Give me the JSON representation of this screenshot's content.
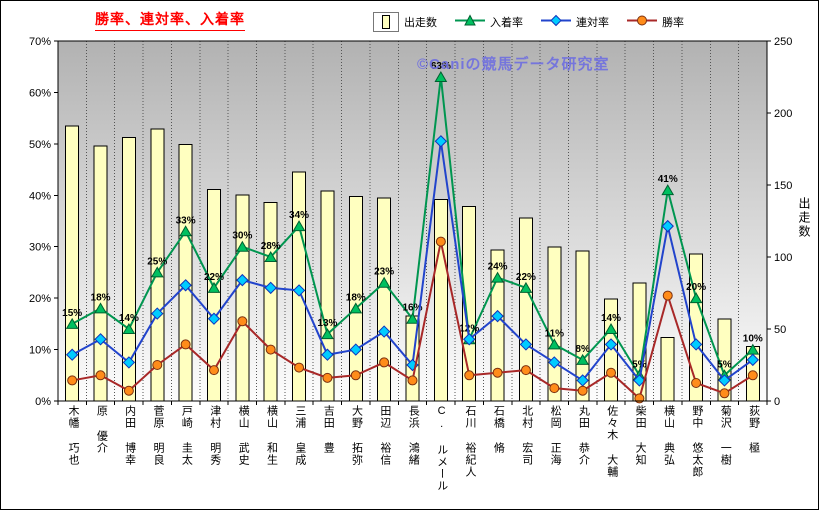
{
  "title": "勝率、連対率、入着率",
  "watermark": "©Caniの競馬データ研究室",
  "legend": [
    {
      "label": "出走数",
      "type": "bar",
      "color": "#FFFFC0"
    },
    {
      "label": "入着率",
      "type": "triangle",
      "line_color": "#009650",
      "marker_fill": "#00C060",
      "marker_stroke": "#006030"
    },
    {
      "label": "連対率",
      "type": "diamond",
      "line_color": "#2244CC",
      "marker_fill": "#00CCFF",
      "marker_stroke": "#1133BB"
    },
    {
      "label": "勝率",
      "type": "circle",
      "line_color": "#A82828",
      "marker_fill": "#FF8C1A",
      "marker_stroke": "#7A3010"
    }
  ],
  "chart_data": {
    "type": "combo-bar-line",
    "title": "勝率、連対率、入着率",
    "categories": [
      "木幡 巧也",
      "原 優介",
      "内田 博幸",
      "菅原 明良",
      "戸崎 圭太",
      "津村 明秀",
      "横山 武史",
      "横山 和生",
      "三浦 皇成",
      "吉田 豊",
      "大野 拓弥",
      "田辺 裕信",
      "長浜 鴻緒",
      "C. ルメール",
      "石川 裕紀人",
      "石橋 脩",
      "北村 宏司",
      "松岡 正海",
      "丸田 恭介",
      "佐々木 大輔",
      "柴田 大知",
      "横山 典弘",
      "野中 悠太郎",
      "菊沢 一樹",
      "荻野 極"
    ],
    "series": [
      {
        "name": "出走数",
        "key": "starts",
        "type": "bar",
        "axis": "right",
        "color": "#FFFFC0",
        "border": "#000000",
        "values": [
          191,
          177,
          183,
          189,
          178,
          147,
          143,
          138,
          159,
          146,
          142,
          141,
          59,
          140,
          135,
          105,
          127,
          107,
          104,
          71,
          82,
          44,
          102,
          57,
          38
        ]
      },
      {
        "name": "入着率",
        "key": "placing-rate",
        "type": "line",
        "marker": "triangle",
        "axis": "left",
        "color": "#009650",
        "marker_fill": "#00C060",
        "marker_stroke": "#006030",
        "show_labels": true,
        "label_format": "{v}%",
        "values": [
          15,
          18,
          14,
          25,
          33,
          22,
          30,
          28,
          34,
          13,
          18,
          23,
          16,
          63,
          12,
          24,
          22,
          11,
          8,
          14,
          5,
          41,
          20,
          5,
          10
        ]
      },
      {
        "name": "連対率",
        "key": "quinella-rate",
        "type": "line",
        "marker": "diamond",
        "axis": "left",
        "color": "#2244CC",
        "marker_fill": "#00CCFF",
        "marker_stroke": "#1133BB",
        "show_labels": false,
        "values": [
          9,
          12,
          7.5,
          17,
          22.5,
          16,
          23.5,
          22,
          21.5,
          9,
          10,
          13.5,
          7,
          50.5,
          12,
          16.5,
          11,
          7.5,
          4,
          11,
          4,
          34,
          11,
          4,
          8
        ]
      },
      {
        "name": "勝率",
        "key": "win-rate",
        "type": "line",
        "marker": "circle",
        "axis": "left",
        "color": "#A82828",
        "marker_fill": "#FF8C1A",
        "marker_stroke": "#7A3010",
        "show_labels": false,
        "values": [
          4,
          5,
          2,
          7,
          11,
          6,
          15.5,
          10,
          6.5,
          4.5,
          5,
          7.5,
          4,
          31,
          5,
          5.5,
          6,
          2.5,
          2,
          5.5,
          0.5,
          20.5,
          3.5,
          1.5,
          5
        ]
      }
    ],
    "left_axis": {
      "min": 0,
      "max": 70,
      "step": 10,
      "unit": "%",
      "ticks": [
        "0%",
        "10%",
        "20%",
        "30%",
        "40%",
        "50%",
        "60%",
        "70%"
      ]
    },
    "right_axis": {
      "min": 0,
      "max": 250,
      "step": 50,
      "title": "出走数",
      "ticks": [
        "0",
        "50",
        "100",
        "150",
        "200",
        "250"
      ]
    },
    "grid": {
      "vertical_dotted": true,
      "horizontal": false
    },
    "plot_background": {
      "top": "#B2B2B2",
      "bottom": "#FDFDFD"
    }
  }
}
